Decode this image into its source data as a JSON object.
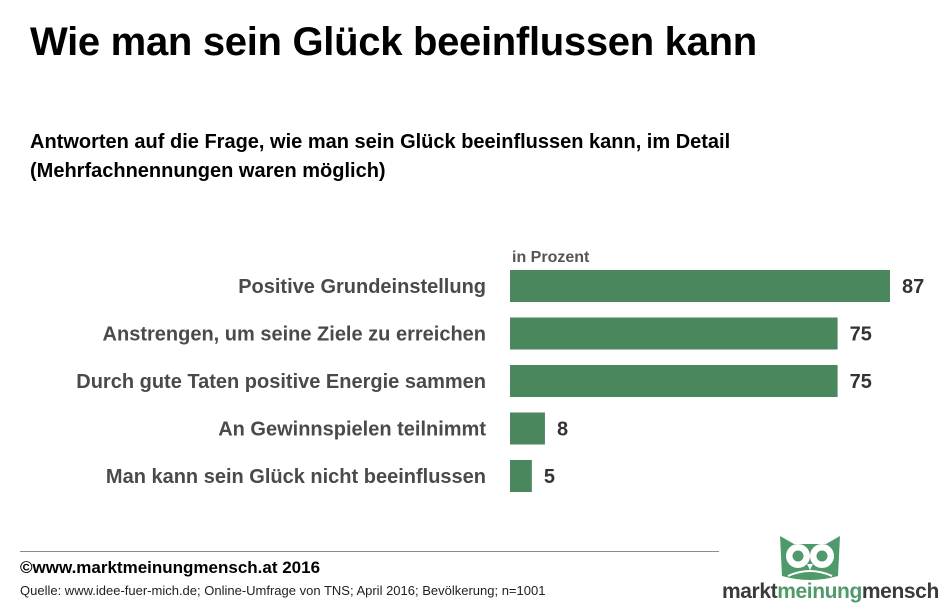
{
  "header": {
    "title": "Wie man sein Glück beeinflussen kann",
    "subtitle_line1": "Antworten auf die Frage, wie man sein Glück beeinflussen kann, im Detail",
    "subtitle_line2": "(Mehrfachnennungen waren möglich)"
  },
  "chart_data": {
    "type": "bar",
    "orientation": "horizontal",
    "title": "Wie man sein Glück beeinflussen kann",
    "unit_label": "in Prozent",
    "categories": [
      "Positive Grundeinstellung",
      "Anstrengen, um seine Ziele zu erreichen",
      "Durch gute Taten positive Energie sammen",
      "An Gewinnspielen teilnimmt",
      "Man kann sein Glück nicht beeinflussen"
    ],
    "values": [
      87,
      75,
      75,
      8,
      5
    ],
    "xlim": [
      0,
      87
    ],
    "grid": false,
    "legend": "none",
    "bar_color": "#4a875d"
  },
  "footer": {
    "copyright": "©www.marktmeinungmensch.at 2016",
    "source": "Quelle: www.idee-fuer-mich.de; Online-Umfrage von TNS; April 2016; Bevölkerung; n=1001"
  },
  "logo": {
    "part1": "markt",
    "part2": "meinung",
    "part3": "mensch",
    "icon": "owl-icon",
    "color": "#4f9a6b"
  }
}
